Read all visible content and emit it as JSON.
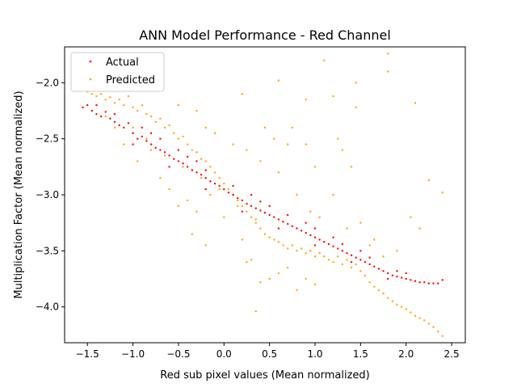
{
  "chart_data": {
    "type": "scatter",
    "title": "ANN Model Performance - Red Channel",
    "xlabel": "Red sub pixel values (Mean normalized)",
    "ylabel": "Multiplication Factor (Mean normalized)",
    "xlim": [
      -1.75,
      2.65
    ],
    "ylim": [
      -4.32,
      -1.68
    ],
    "xticks": [
      -1.5,
      -1.0,
      -0.5,
      0.0,
      0.5,
      1.0,
      1.5,
      2.0,
      2.5
    ],
    "xtick_labels": [
      "−1.5",
      "−1.0",
      "−0.5",
      "0.0",
      "0.5",
      "1.0",
      "1.5",
      "2.0",
      "2.5"
    ],
    "yticks": [
      -4.0,
      -3.5,
      -3.0,
      -2.5,
      -2.0
    ],
    "ytick_labels": [
      "−4.0",
      "−3.5",
      "−3.0",
      "−2.5",
      "−2.0"
    ],
    "grid": false,
    "legend_position": "top-left",
    "series": [
      {
        "name": "Actual",
        "color": "#ff0000",
        "points": [
          [
            -1.55,
            -2.22
          ],
          [
            -1.5,
            -2.2
          ],
          [
            -1.45,
            -2.25
          ],
          [
            -1.4,
            -2.28
          ],
          [
            -1.35,
            -2.3
          ],
          [
            -1.3,
            -2.26
          ],
          [
            -1.25,
            -2.32
          ],
          [
            -1.2,
            -2.35
          ],
          [
            -1.15,
            -2.38
          ],
          [
            -1.1,
            -2.4
          ],
          [
            -1.05,
            -2.36
          ],
          [
            -1.0,
            -2.45
          ],
          [
            -0.95,
            -2.5
          ],
          [
            -0.9,
            -2.48
          ],
          [
            -0.85,
            -2.52
          ],
          [
            -0.8,
            -2.55
          ],
          [
            -0.75,
            -2.58
          ],
          [
            -0.7,
            -2.6
          ],
          [
            -0.65,
            -2.62
          ],
          [
            -0.6,
            -2.65
          ],
          [
            -0.55,
            -2.68
          ],
          [
            -0.5,
            -2.7
          ],
          [
            -0.45,
            -2.72
          ],
          [
            -0.4,
            -2.75
          ],
          [
            -0.35,
            -2.78
          ],
          [
            -0.3,
            -2.8
          ],
          [
            -0.25,
            -2.82
          ],
          [
            -0.2,
            -2.85
          ],
          [
            -0.15,
            -2.88
          ],
          [
            -0.1,
            -2.9
          ],
          [
            -0.05,
            -2.92
          ],
          [
            0.0,
            -2.95
          ],
          [
            0.05,
            -2.98
          ],
          [
            0.1,
            -3.0
          ],
          [
            0.15,
            -3.03
          ],
          [
            0.2,
            -3.05
          ],
          [
            0.25,
            -3.08
          ],
          [
            0.3,
            -3.1
          ],
          [
            0.35,
            -3.12
          ],
          [
            0.4,
            -3.14
          ],
          [
            0.45,
            -3.16
          ],
          [
            0.5,
            -3.18
          ],
          [
            0.55,
            -3.2
          ],
          [
            0.6,
            -3.22
          ],
          [
            0.65,
            -3.24
          ],
          [
            0.7,
            -3.26
          ],
          [
            0.75,
            -3.28
          ],
          [
            0.8,
            -3.3
          ],
          [
            0.85,
            -3.32
          ],
          [
            0.9,
            -3.34
          ],
          [
            0.95,
            -3.36
          ],
          [
            1.0,
            -3.38
          ],
          [
            1.05,
            -3.4
          ],
          [
            1.1,
            -3.42
          ],
          [
            1.15,
            -3.44
          ],
          [
            1.2,
            -3.46
          ],
          [
            1.25,
            -3.48
          ],
          [
            1.3,
            -3.5
          ],
          [
            1.35,
            -3.52
          ],
          [
            1.4,
            -3.54
          ],
          [
            1.45,
            -3.56
          ],
          [
            1.5,
            -3.58
          ],
          [
            1.55,
            -3.6
          ],
          [
            1.6,
            -3.62
          ],
          [
            1.65,
            -3.64
          ],
          [
            1.7,
            -3.66
          ],
          [
            1.75,
            -3.68
          ],
          [
            1.8,
            -3.7
          ],
          [
            1.85,
            -3.72
          ],
          [
            1.9,
            -3.73
          ],
          [
            1.95,
            -3.74
          ],
          [
            2.0,
            -3.75
          ],
          [
            2.05,
            -3.76
          ],
          [
            2.1,
            -3.77
          ],
          [
            2.15,
            -3.78
          ],
          [
            2.2,
            -3.78
          ],
          [
            2.25,
            -3.79
          ],
          [
            2.3,
            -3.79
          ],
          [
            2.35,
            -3.79
          ],
          [
            2.4,
            -3.76
          ],
          [
            -1.2,
            -2.28
          ],
          [
            -0.9,
            -2.4
          ],
          [
            -0.7,
            -2.5
          ],
          [
            -0.4,
            -2.66
          ],
          [
            -0.2,
            -2.78
          ],
          [
            0.1,
            -2.92
          ],
          [
            0.4,
            -3.06
          ],
          [
            0.7,
            -3.18
          ],
          [
            1.0,
            -3.3
          ],
          [
            1.3,
            -3.44
          ],
          [
            1.6,
            -3.56
          ],
          [
            1.9,
            -3.68
          ],
          [
            -1.0,
            -2.55
          ],
          [
            -0.6,
            -2.75
          ],
          [
            -0.2,
            -2.95
          ],
          [
            0.2,
            -3.15
          ],
          [
            0.6,
            -3.3
          ],
          [
            1.0,
            -3.45
          ],
          [
            1.4,
            -3.6
          ],
          [
            1.8,
            -3.75
          ],
          [
            -0.8,
            -2.45
          ],
          [
            -0.3,
            -2.7
          ],
          [
            0.3,
            -3.0
          ],
          [
            0.9,
            -3.25
          ],
          [
            1.5,
            -3.5
          ],
          [
            2.0,
            -3.7
          ],
          [
            -1.4,
            -2.2
          ],
          [
            -0.5,
            -2.6
          ],
          [
            0.5,
            -3.1
          ],
          [
            1.2,
            -3.38
          ]
        ]
      },
      {
        "name": "Predicted",
        "color": "#ffa500",
        "points": [
          [
            -1.55,
            -2.05
          ],
          [
            -1.5,
            -2.08
          ],
          [
            -1.45,
            -2.1
          ],
          [
            -1.4,
            -2.12
          ],
          [
            -1.35,
            -2.1
          ],
          [
            -1.3,
            -2.15
          ],
          [
            -1.25,
            -2.13
          ],
          [
            -1.2,
            -2.18
          ],
          [
            -1.15,
            -2.15
          ],
          [
            -1.1,
            -2.2
          ],
          [
            -1.05,
            -2.12
          ],
          [
            -1.0,
            -2.22
          ],
          [
            -0.95,
            -2.25
          ],
          [
            -0.9,
            -2.2
          ],
          [
            -0.85,
            -2.28
          ],
          [
            -0.8,
            -2.3
          ],
          [
            -0.75,
            -2.35
          ],
          [
            -0.7,
            -2.32
          ],
          [
            -0.65,
            -2.4
          ],
          [
            -0.6,
            -2.38
          ],
          [
            -0.55,
            -2.45
          ],
          [
            -0.5,
            -2.5
          ],
          [
            -0.45,
            -2.48
          ],
          [
            -0.4,
            -2.55
          ],
          [
            -0.35,
            -2.6
          ],
          [
            -0.3,
            -2.62
          ],
          [
            -0.25,
            -2.68
          ],
          [
            -0.2,
            -2.7
          ],
          [
            -0.15,
            -2.75
          ],
          [
            -0.1,
            -2.8
          ],
          [
            -0.05,
            -2.85
          ],
          [
            0.0,
            -2.9
          ],
          [
            0.05,
            -2.95
          ],
          [
            0.1,
            -3.0
          ],
          [
            0.15,
            -3.05
          ],
          [
            0.2,
            -3.1
          ],
          [
            0.25,
            -3.15
          ],
          [
            0.3,
            -3.2
          ],
          [
            0.35,
            -3.25
          ],
          [
            0.4,
            -3.3
          ],
          [
            0.45,
            -3.35
          ],
          [
            0.5,
            -3.38
          ],
          [
            0.55,
            -3.4
          ],
          [
            0.6,
            -3.42
          ],
          [
            0.65,
            -3.45
          ],
          [
            0.7,
            -3.48
          ],
          [
            0.75,
            -3.45
          ],
          [
            0.8,
            -3.5
          ],
          [
            0.85,
            -3.48
          ],
          [
            0.9,
            -3.52
          ],
          [
            0.95,
            -3.5
          ],
          [
            1.0,
            -3.55
          ],
          [
            1.05,
            -3.52
          ],
          [
            1.1,
            -3.55
          ],
          [
            1.15,
            -3.58
          ],
          [
            1.2,
            -3.6
          ],
          [
            1.25,
            -3.55
          ],
          [
            1.3,
            -3.62
          ],
          [
            1.35,
            -3.58
          ],
          [
            1.4,
            -3.65
          ],
          [
            1.45,
            -3.62
          ],
          [
            1.5,
            -3.68
          ],
          [
            1.55,
            -3.72
          ],
          [
            1.6,
            -3.78
          ],
          [
            1.65,
            -3.82
          ],
          [
            1.7,
            -3.85
          ],
          [
            1.75,
            -3.88
          ],
          [
            1.8,
            -3.92
          ],
          [
            1.85,
            -3.95
          ],
          [
            1.9,
            -3.98
          ],
          [
            1.95,
            -4.0
          ],
          [
            2.0,
            -4.02
          ],
          [
            2.05,
            -4.05
          ],
          [
            2.1,
            -4.08
          ],
          [
            2.15,
            -4.1
          ],
          [
            2.2,
            -4.12
          ],
          [
            2.25,
            -4.15
          ],
          [
            2.3,
            -4.18
          ],
          [
            2.35,
            -4.22
          ],
          [
            2.4,
            -4.26
          ],
          [
            -1.2,
            -2.4
          ],
          [
            -1.1,
            -2.55
          ],
          [
            -0.95,
            -2.7
          ],
          [
            -0.8,
            -2.6
          ],
          [
            -0.7,
            -2.85
          ],
          [
            -0.6,
            -2.95
          ],
          [
            -0.5,
            -3.1
          ],
          [
            -0.4,
            -3.05
          ],
          [
            -0.3,
            -3.15
          ],
          [
            -0.2,
            -3.45
          ],
          [
            0.0,
            -3.2
          ],
          [
            0.2,
            -3.4
          ],
          [
            0.3,
            -3.58
          ],
          [
            0.4,
            -3.78
          ],
          [
            0.5,
            -3.75
          ],
          [
            0.6,
            -3.7
          ],
          [
            0.7,
            -3.65
          ],
          [
            0.8,
            -3.85
          ],
          [
            0.9,
            -3.75
          ],
          [
            1.0,
            -3.8
          ],
          [
            0.35,
            -4.04
          ],
          [
            -0.1,
            -2.45
          ],
          [
            0.1,
            -2.55
          ],
          [
            0.25,
            -2.6
          ],
          [
            0.4,
            -2.7
          ],
          [
            0.55,
            -2.5
          ],
          [
            0.7,
            -2.55
          ],
          [
            0.75,
            -2.4
          ],
          [
            0.9,
            -2.55
          ],
          [
            1.0,
            -2.75
          ],
          [
            0.2,
            -2.1
          ],
          [
            0.6,
            -1.98
          ],
          [
            0.9,
            -2.15
          ],
          [
            1.1,
            -1.8
          ],
          [
            1.2,
            -2.12
          ],
          [
            1.45,
            -2.0
          ],
          [
            1.45,
            -2.22
          ],
          [
            1.8,
            -1.9
          ],
          [
            1.8,
            -1.74
          ],
          [
            2.1,
            -2.18
          ],
          [
            1.4,
            -2.75
          ],
          [
            1.3,
            -2.6
          ],
          [
            1.25,
            -2.5
          ],
          [
            1.65,
            -3.4
          ],
          [
            1.9,
            -3.5
          ],
          [
            2.05,
            -3.2
          ],
          [
            2.15,
            -3.3
          ],
          [
            2.25,
            -2.87
          ],
          [
            2.4,
            -2.98
          ],
          [
            0.25,
            -3.6
          ],
          [
            -0.5,
            -2.2
          ],
          [
            -0.3,
            -2.25
          ],
          [
            -0.2,
            -2.4
          ],
          [
            -0.35,
            -3.35
          ],
          [
            -0.15,
            -3.0
          ],
          [
            0.45,
            -2.4
          ],
          [
            0.6,
            -2.8
          ],
          [
            0.8,
            -3.0
          ],
          [
            0.95,
            -3.15
          ],
          [
            1.05,
            -3.2
          ],
          [
            1.2,
            -3.0
          ],
          [
            1.35,
            -3.3
          ],
          [
            1.5,
            -3.25
          ],
          [
            1.6,
            -3.45
          ],
          [
            1.75,
            -3.55
          ],
          [
            -1.45,
            -2.25
          ],
          [
            -1.3,
            -2.3
          ],
          [
            -1.0,
            -2.4
          ],
          [
            -0.85,
            -2.5
          ],
          [
            -0.65,
            -2.65
          ],
          [
            -0.45,
            -2.75
          ],
          [
            -0.25,
            -2.85
          ],
          [
            -0.05,
            -2.95
          ],
          [
            0.15,
            -3.1
          ],
          [
            0.35,
            -3.22
          ]
        ]
      }
    ]
  }
}
